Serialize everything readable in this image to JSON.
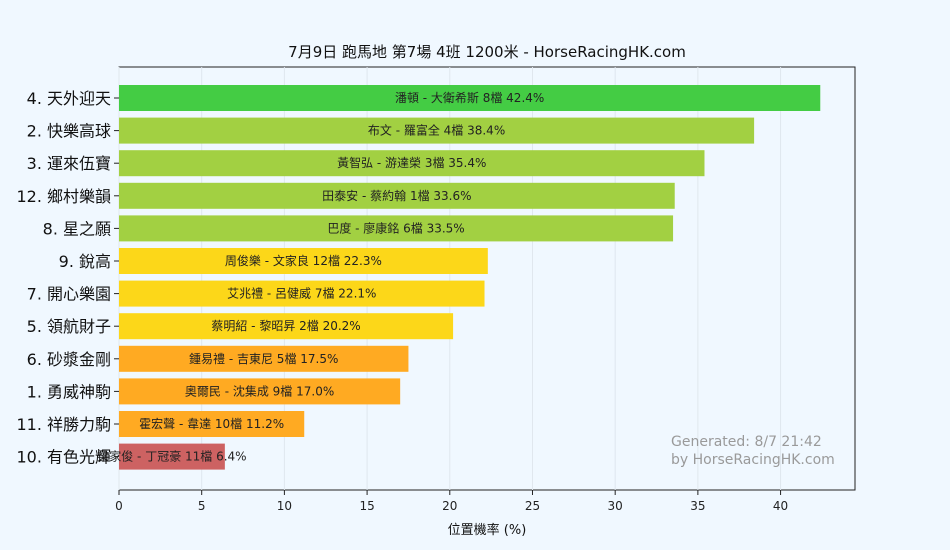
{
  "chart_data": {
    "type": "bar",
    "orientation": "horizontal",
    "title": "7月9日  跑馬地  第7場  4班  1200米 - HorseRacingHK.com",
    "xlabel": "位置機率 (%)",
    "xlim": [
      0,
      44.5
    ],
    "xticks": [
      0,
      5,
      10,
      15,
      20,
      25,
      30,
      35,
      40
    ],
    "grid": true,
    "categories": [
      "4. 天外迎天",
      "2. 快樂高球",
      "3. 運來伍寶",
      "12. 鄉村樂韻",
      "8. 星之願",
      "9. 銳高",
      "7. 開心樂園",
      "5. 領航財子",
      "6. 砂漿金剛",
      "1. 勇威神駒",
      "11. 祥勝力駒",
      "10. 有色光輝"
    ],
    "values": [
      42.4,
      38.4,
      35.4,
      33.6,
      33.5,
      22.3,
      22.1,
      20.2,
      17.5,
      17.0,
      11.2,
      6.4
    ],
    "bar_labels": [
      "潘頓 - 大衛希斯 8檔  42.4%",
      "布文 - 羅富全 4檔  38.4%",
      "黃智弘 - 游達榮 3檔  35.4%",
      "田泰安 - 蔡約翰 1檔  33.6%",
      "巴度 - 廖康銘 6檔  33.5%",
      "周俊樂 - 文家良 12檔  22.3%",
      "艾兆禮 - 呂健威 7檔  22.1%",
      "蔡明紹 - 黎昭昇 2檔  20.2%",
      "鍾易禮 - 吉東尼 5檔  17.5%",
      "奧爾民 - 沈集成 9檔  17.0%",
      "霍宏聲 - 韋達 10檔  11.2%",
      "梁家俊 - 丁冠豪 11檔  6.4%"
    ],
    "bar_colors": [
      "#44cc44",
      "#a2d042",
      "#a2d042",
      "#a2d042",
      "#a2d042",
      "#fcd719",
      "#fcd719",
      "#fcd719",
      "#ffaa22",
      "#ffaa22",
      "#ffaa22",
      "#cd6262"
    ],
    "watermark": [
      "Generated: 8/7 21:42",
      "by HorseRacingHK.com"
    ]
  }
}
